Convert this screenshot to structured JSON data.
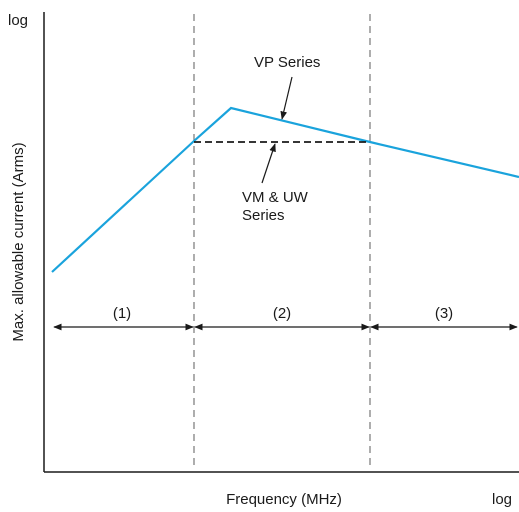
{
  "chart_data": {
    "type": "line",
    "xlabel": "Frequency (MHz)",
    "ylabel": "Max. allowable current (Arms)",
    "x_scale_label": "log",
    "y_scale_label": "log",
    "x_scale": "log",
    "y_scale": "log",
    "grid": false,
    "regions": [
      {
        "label": "(1)"
      },
      {
        "label": "(2)"
      },
      {
        "label": "(3)"
      }
    ],
    "series": [
      {
        "name": "VP Series",
        "style": "solid",
        "color": "#1aa3dc"
      },
      {
        "name": "VM & UW Series",
        "style": "dashed",
        "color": "#1a1a1a"
      }
    ],
    "annotations": [
      {
        "text": "VP Series",
        "target": "VP Series"
      },
      {
        "text": "VM & UW Series",
        "lines": [
          "VM & UW",
          "Series"
        ],
        "target": "VM & UW Series"
      }
    ]
  }
}
